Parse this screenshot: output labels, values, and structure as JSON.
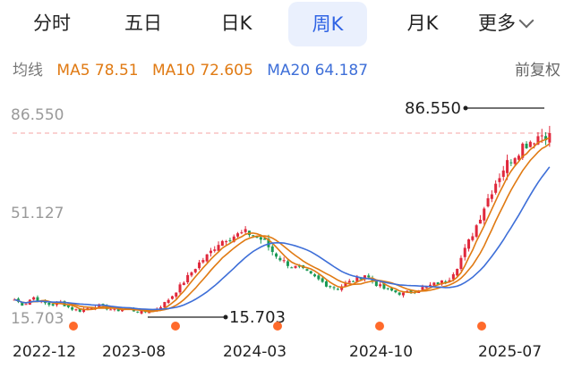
{
  "tabs": [
    {
      "label": "分时"
    },
    {
      "label": "五日"
    },
    {
      "label": "日K"
    },
    {
      "label": "周K"
    },
    {
      "label": "月K"
    },
    {
      "label": "更多"
    }
  ],
  "active_tab": "周K",
  "ma_bar": {
    "label": "均线",
    "ma5": "MA5 78.51",
    "ma10": "MA10 72.605",
    "ma20": "MA20 64.187",
    "adjust": "前复权"
  },
  "colors": {
    "up": "#e0283c",
    "down": "#1a9a55",
    "ma5": "#e07a13",
    "ma10": "#e07a13",
    "ma20": "#3e6fd8",
    "accent": "#2f63e4",
    "event_dot": "#ff6a2b",
    "ref_line": "#f4a3a3"
  },
  "chart_data": {
    "type": "candlestick",
    "y_ticks": [
      "86.550",
      "51.127",
      "15.703"
    ],
    "ylim": [
      15.703,
      86.55
    ],
    "x_labels": [
      "2022-12",
      "2023-08",
      "2024-03",
      "2024-10",
      "2025-07"
    ],
    "high_annotation": "86.550",
    "low_annotation": "15.703",
    "event_markers": 5,
    "close_path": [
      21,
      19,
      22,
      20,
      19,
      20,
      18,
      17,
      18,
      19,
      18,
      17,
      18,
      17,
      16.5,
      17,
      19,
      22,
      26,
      30,
      34,
      37,
      41,
      43,
      44,
      45,
      44,
      42,
      38,
      35,
      33,
      32,
      30,
      28,
      26,
      25,
      27,
      28,
      30,
      27,
      25,
      24,
      23,
      24,
      25,
      26,
      27,
      28,
      33,
      40,
      47,
      55,
      62,
      68,
      72,
      76,
      78,
      80,
      80.5
    ]
  }
}
